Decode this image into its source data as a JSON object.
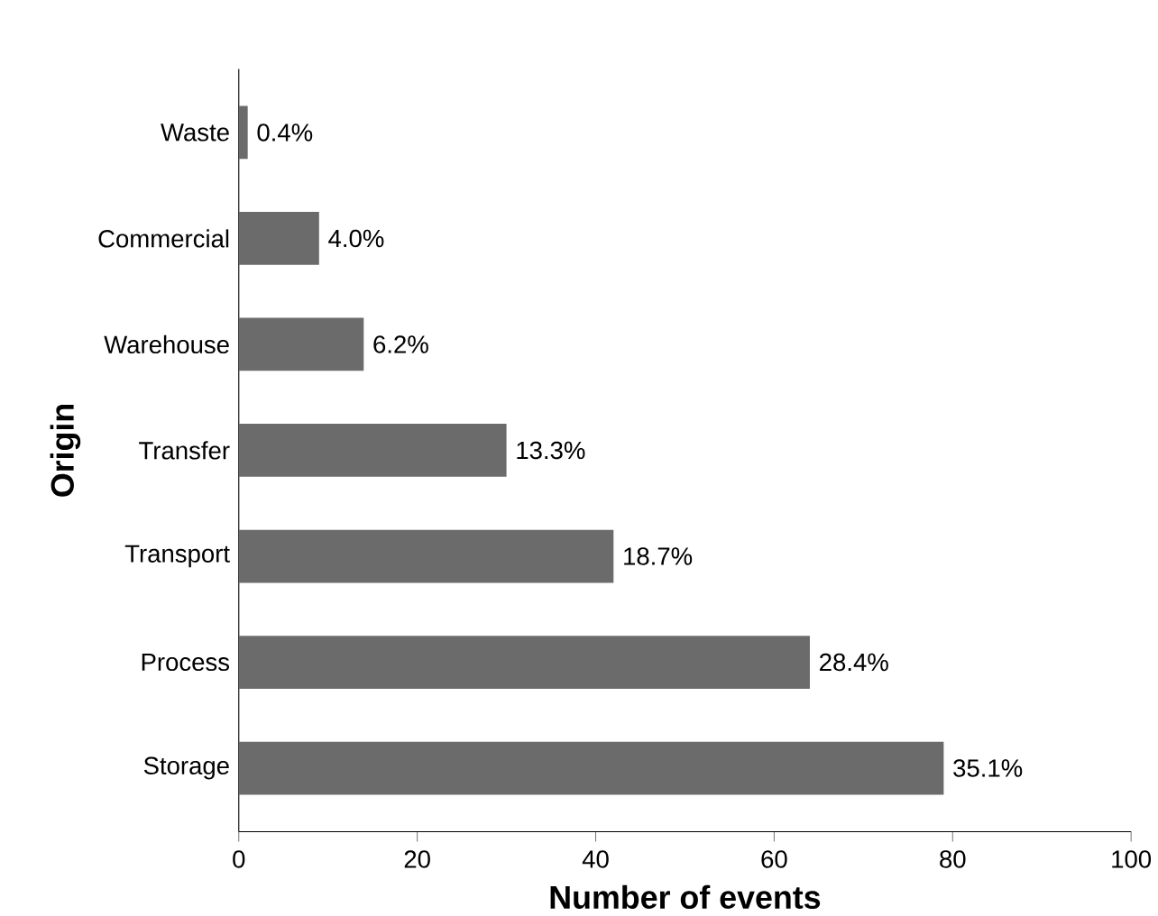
{
  "chart_data": {
    "type": "bar",
    "orientation": "horizontal",
    "xlabel": "Number of events",
    "ylabel": "Origin",
    "categories": [
      "Waste",
      "Commercial",
      "Warehouse",
      "Transfer",
      "Transport",
      "Process",
      "Storage"
    ],
    "values": [
      1,
      9,
      14,
      30,
      42,
      64,
      79
    ],
    "annotations": [
      {
        "text": "0.4%",
        "x": 1,
        "y": "Waste"
      },
      {
        "text": "4.0%",
        "x": 9,
        "y": "Commercial"
      },
      {
        "text": "6.2%",
        "x": 14,
        "y": "Warehouse"
      },
      {
        "text": "13.3%",
        "x": 30,
        "y": "Transfer"
      },
      {
        "text": "18.7%",
        "x": 42,
        "y": "Transport"
      },
      {
        "text": "28.4%",
        "x": 64,
        "y": "Process"
      },
      {
        "text": "35.1%",
        "x": 79,
        "y": "Storage"
      }
    ],
    "color": "#6b6b6b",
    "xlim": [
      0,
      100
    ],
    "xticks": [
      0,
      20,
      40,
      60,
      80,
      100
    ],
    "grid": false
  }
}
